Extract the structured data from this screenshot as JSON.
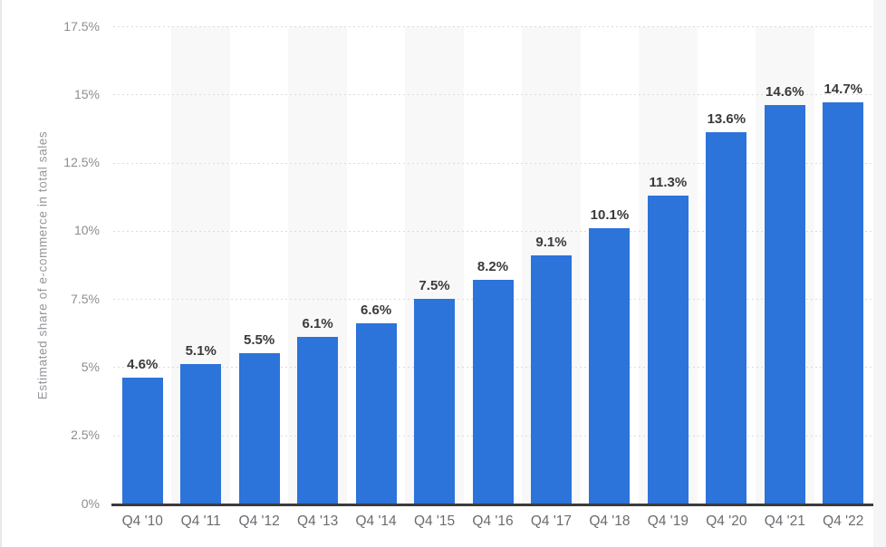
{
  "page": {
    "background": "#ffffff",
    "edge_left_color": "#e9e9e9",
    "edge_right_color": "#f5f5f5"
  },
  "chart_data": {
    "type": "bar",
    "title": "",
    "xlabel": "",
    "ylabel": "Estimated share of e-commerce in total sales",
    "categories": [
      "Q4 '10",
      "Q4 '11",
      "Q4 '12",
      "Q4 '13",
      "Q4 '14",
      "Q4 '15",
      "Q4 '16",
      "Q4 '17",
      "Q4 '18",
      "Q4 '19",
      "Q4 '20",
      "Q4 '21",
      "Q4 '22"
    ],
    "values": [
      4.6,
      5.1,
      5.5,
      6.1,
      6.6,
      7.5,
      8.2,
      9.1,
      10.1,
      11.3,
      13.6,
      14.6,
      14.7
    ],
    "value_labels": [
      "4.6%",
      "5.1%",
      "5.5%",
      "6.1%",
      "6.6%",
      "7.5%",
      "8.2%",
      "9.1%",
      "10.1%",
      "11.3%",
      "13.6%",
      "14.6%",
      "14.7%"
    ],
    "ylim": [
      0,
      17.5
    ],
    "yticks": {
      "values": [
        0,
        2.5,
        5,
        7.5,
        10,
        12.5,
        15,
        17.5
      ],
      "labels": [
        "0%",
        "2.5%",
        "5%",
        "7.5%",
        "10%",
        "12.5%",
        "15%",
        "17.5%"
      ]
    },
    "grid": "horizontal-dotted",
    "legend": "none",
    "column_band_slots": "alternating-even",
    "colors": {
      "bar": "#2c73da",
      "value_label": "#3a3a3a",
      "x_tick_label": "#6e6a70",
      "y_tick_label": "#8f8c93",
      "y_axis_title": "#98959b",
      "gridline": "#dcdcdc",
      "axis_line": "#3b3b3b",
      "column_band": "#f8f8f8"
    }
  }
}
